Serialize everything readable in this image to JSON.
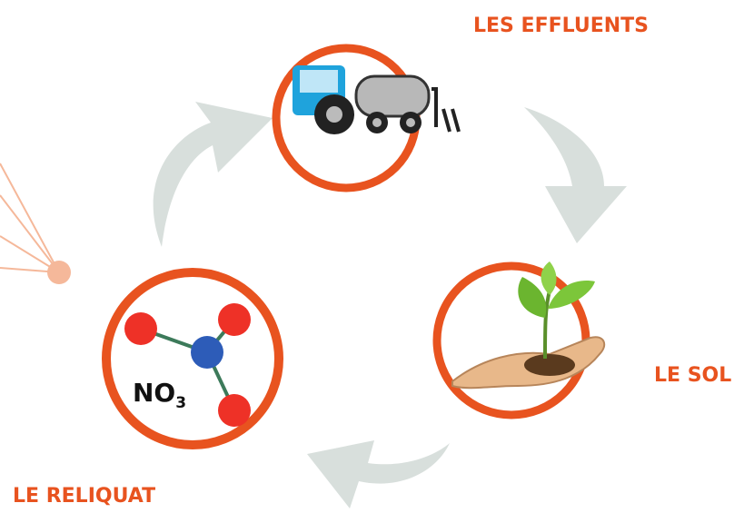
{
  "nodes": [
    {
      "label": "LES EFFLUENTS"
    },
    {
      "label": "LE SOL"
    },
    {
      "label": "LE RELIQUAT",
      "formula": {
        "base": "NO",
        "subscript": "3"
      }
    }
  ]
}
